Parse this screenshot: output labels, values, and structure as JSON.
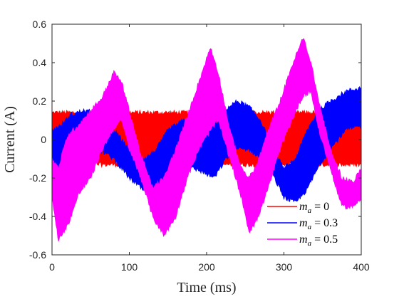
{
  "chart_data": {
    "type": "line",
    "title": "",
    "xlabel": "Time (ms)",
    "ylabel": "Current (A)",
    "xlim": [
      0,
      400
    ],
    "ylim": [
      -0.6,
      0.6
    ],
    "xticks": [
      0,
      100,
      200,
      300,
      400
    ],
    "yticks": [
      -0.6,
      -0.4,
      -0.2,
      0,
      0.2,
      0.4,
      0.6
    ],
    "xtick_labels": [
      "0",
      "100",
      "200",
      "300",
      "400"
    ],
    "ytick_labels": [
      "-0.6",
      "-0.4",
      "-0.2",
      "0",
      "0.2",
      "0.4",
      "0.6"
    ],
    "grid": false,
    "legend_position": "bottom-right",
    "series": [
      {
        "name": "m_a = 0",
        "legend_text": "= 0",
        "color": "#ff0000",
        "band": {
          "x": [
            0,
            400
          ],
          "upper": [
            0.14,
            0.14
          ],
          "lower": [
            -0.13,
            -0.13
          ]
        },
        "envelope": {
          "x": [
            0,
            400
          ],
          "upper": [
            0.08,
            0.08
          ],
          "lower": [
            -0.07,
            -0.07
          ]
        }
      },
      {
        "name": "m_a = 0.3",
        "legend_text": "= 0.3",
        "color": "#0000ff",
        "band": {
          "x": [
            0,
            10,
            25,
            40,
            60,
            80,
            100,
            120,
            135,
            150,
            170,
            190,
            210,
            225,
            240,
            255,
            270,
            285,
            300,
            315,
            330,
            345,
            360,
            380,
            400
          ],
          "upper": [
            0.05,
            0.07,
            0.13,
            0.15,
            0.14,
            0.05,
            -0.05,
            -0.1,
            -0.05,
            0.05,
            0.1,
            0.09,
            0.07,
            0.16,
            0.2,
            0.17,
            0.1,
            -0.05,
            -0.15,
            -0.1,
            0.05,
            0.15,
            0.2,
            0.25,
            0.27
          ],
          "lower": [
            -0.18,
            -0.15,
            -0.05,
            -0.05,
            -0.05,
            -0.1,
            -0.2,
            -0.27,
            -0.3,
            -0.2,
            -0.14,
            -0.16,
            -0.2,
            -0.1,
            -0.05,
            -0.05,
            -0.1,
            -0.18,
            -0.3,
            -0.33,
            -0.26,
            -0.14,
            -0.05,
            0.05,
            0.07
          ]
        }
      },
      {
        "name": "m_a = 0.5",
        "legend_text": "= 0.5",
        "color": "#ff00ff",
        "band": {
          "x": [
            0,
            8,
            20,
            35,
            50,
            65,
            80,
            90,
            100,
            115,
            130,
            145,
            160,
            175,
            190,
            205,
            215,
            230,
            245,
            255,
            265,
            280,
            295,
            310,
            325,
            335,
            345,
            360,
            375,
            390,
            400
          ],
          "upper": [
            -0.1,
            -0.15,
            0.02,
            0.08,
            0.15,
            0.22,
            0.35,
            0.3,
            0.15,
            -0.08,
            -0.25,
            -0.2,
            -0.05,
            0.12,
            0.3,
            0.48,
            0.35,
            0.05,
            -0.15,
            -0.2,
            -0.13,
            0.05,
            0.2,
            0.38,
            0.53,
            0.4,
            0.2,
            -0.05,
            -0.2,
            -0.22,
            -0.15
          ],
          "lower": [
            -0.3,
            -0.52,
            -0.45,
            -0.28,
            -0.2,
            -0.05,
            0.06,
            0.1,
            -0.05,
            -0.2,
            -0.4,
            -0.5,
            -0.4,
            -0.2,
            -0.05,
            0.05,
            0.1,
            -0.1,
            -0.3,
            -0.48,
            -0.42,
            -0.25,
            -0.05,
            0.1,
            0.23,
            0.25,
            0.05,
            -0.15,
            -0.35,
            -0.35,
            -0.3
          ]
        }
      }
    ]
  },
  "legend": {
    "symbol": "m",
    "subscript": "a"
  }
}
